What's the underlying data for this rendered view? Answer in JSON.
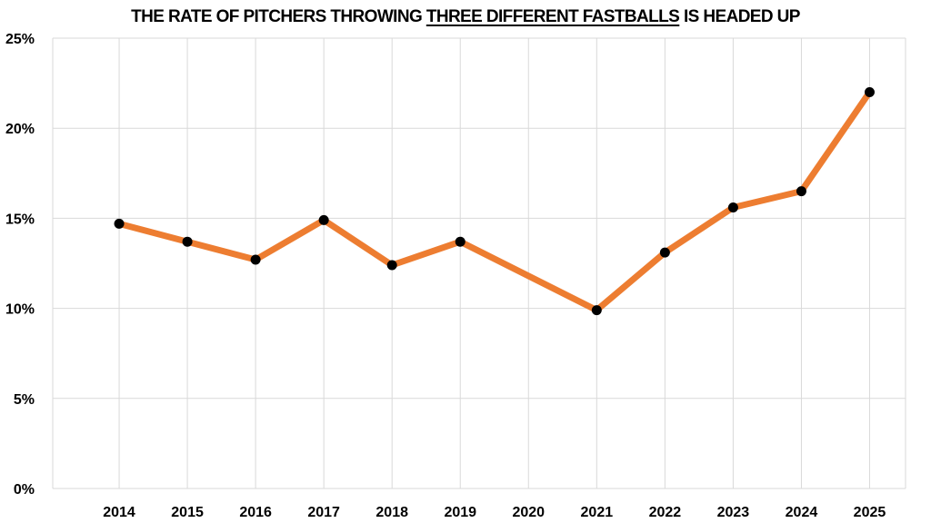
{
  "chart_data": {
    "type": "line",
    "title": {
      "before": "THE RATE OF PITCHERS THROWING ",
      "emphasis": "THREE DIFFERENT FASTBALLS",
      "after": " IS HEADED UP"
    },
    "categories": [
      "2014",
      "2015",
      "2016",
      "2017",
      "2018",
      "2019",
      "2020",
      "2021",
      "2022",
      "2023",
      "2024",
      "2025"
    ],
    "series": [
      {
        "values": [
          14.7,
          13.7,
          12.7,
          14.9,
          12.4,
          13.7,
          null,
          9.9,
          13.1,
          15.6,
          16.5,
          22.0
        ],
        "line_color": "#ED7D31",
        "marker_color": "#000000"
      }
    ],
    "ylim": [
      0,
      25
    ],
    "yticks": [
      0,
      5,
      10,
      15,
      20,
      25
    ],
    "ytick_labels": [
      "0%",
      "5%",
      "10%",
      "15%",
      "20%",
      "25%"
    ],
    "xlabel": "",
    "ylabel": "",
    "grid": true,
    "gridline_color": "#D9D9D9",
    "legend": "none"
  }
}
